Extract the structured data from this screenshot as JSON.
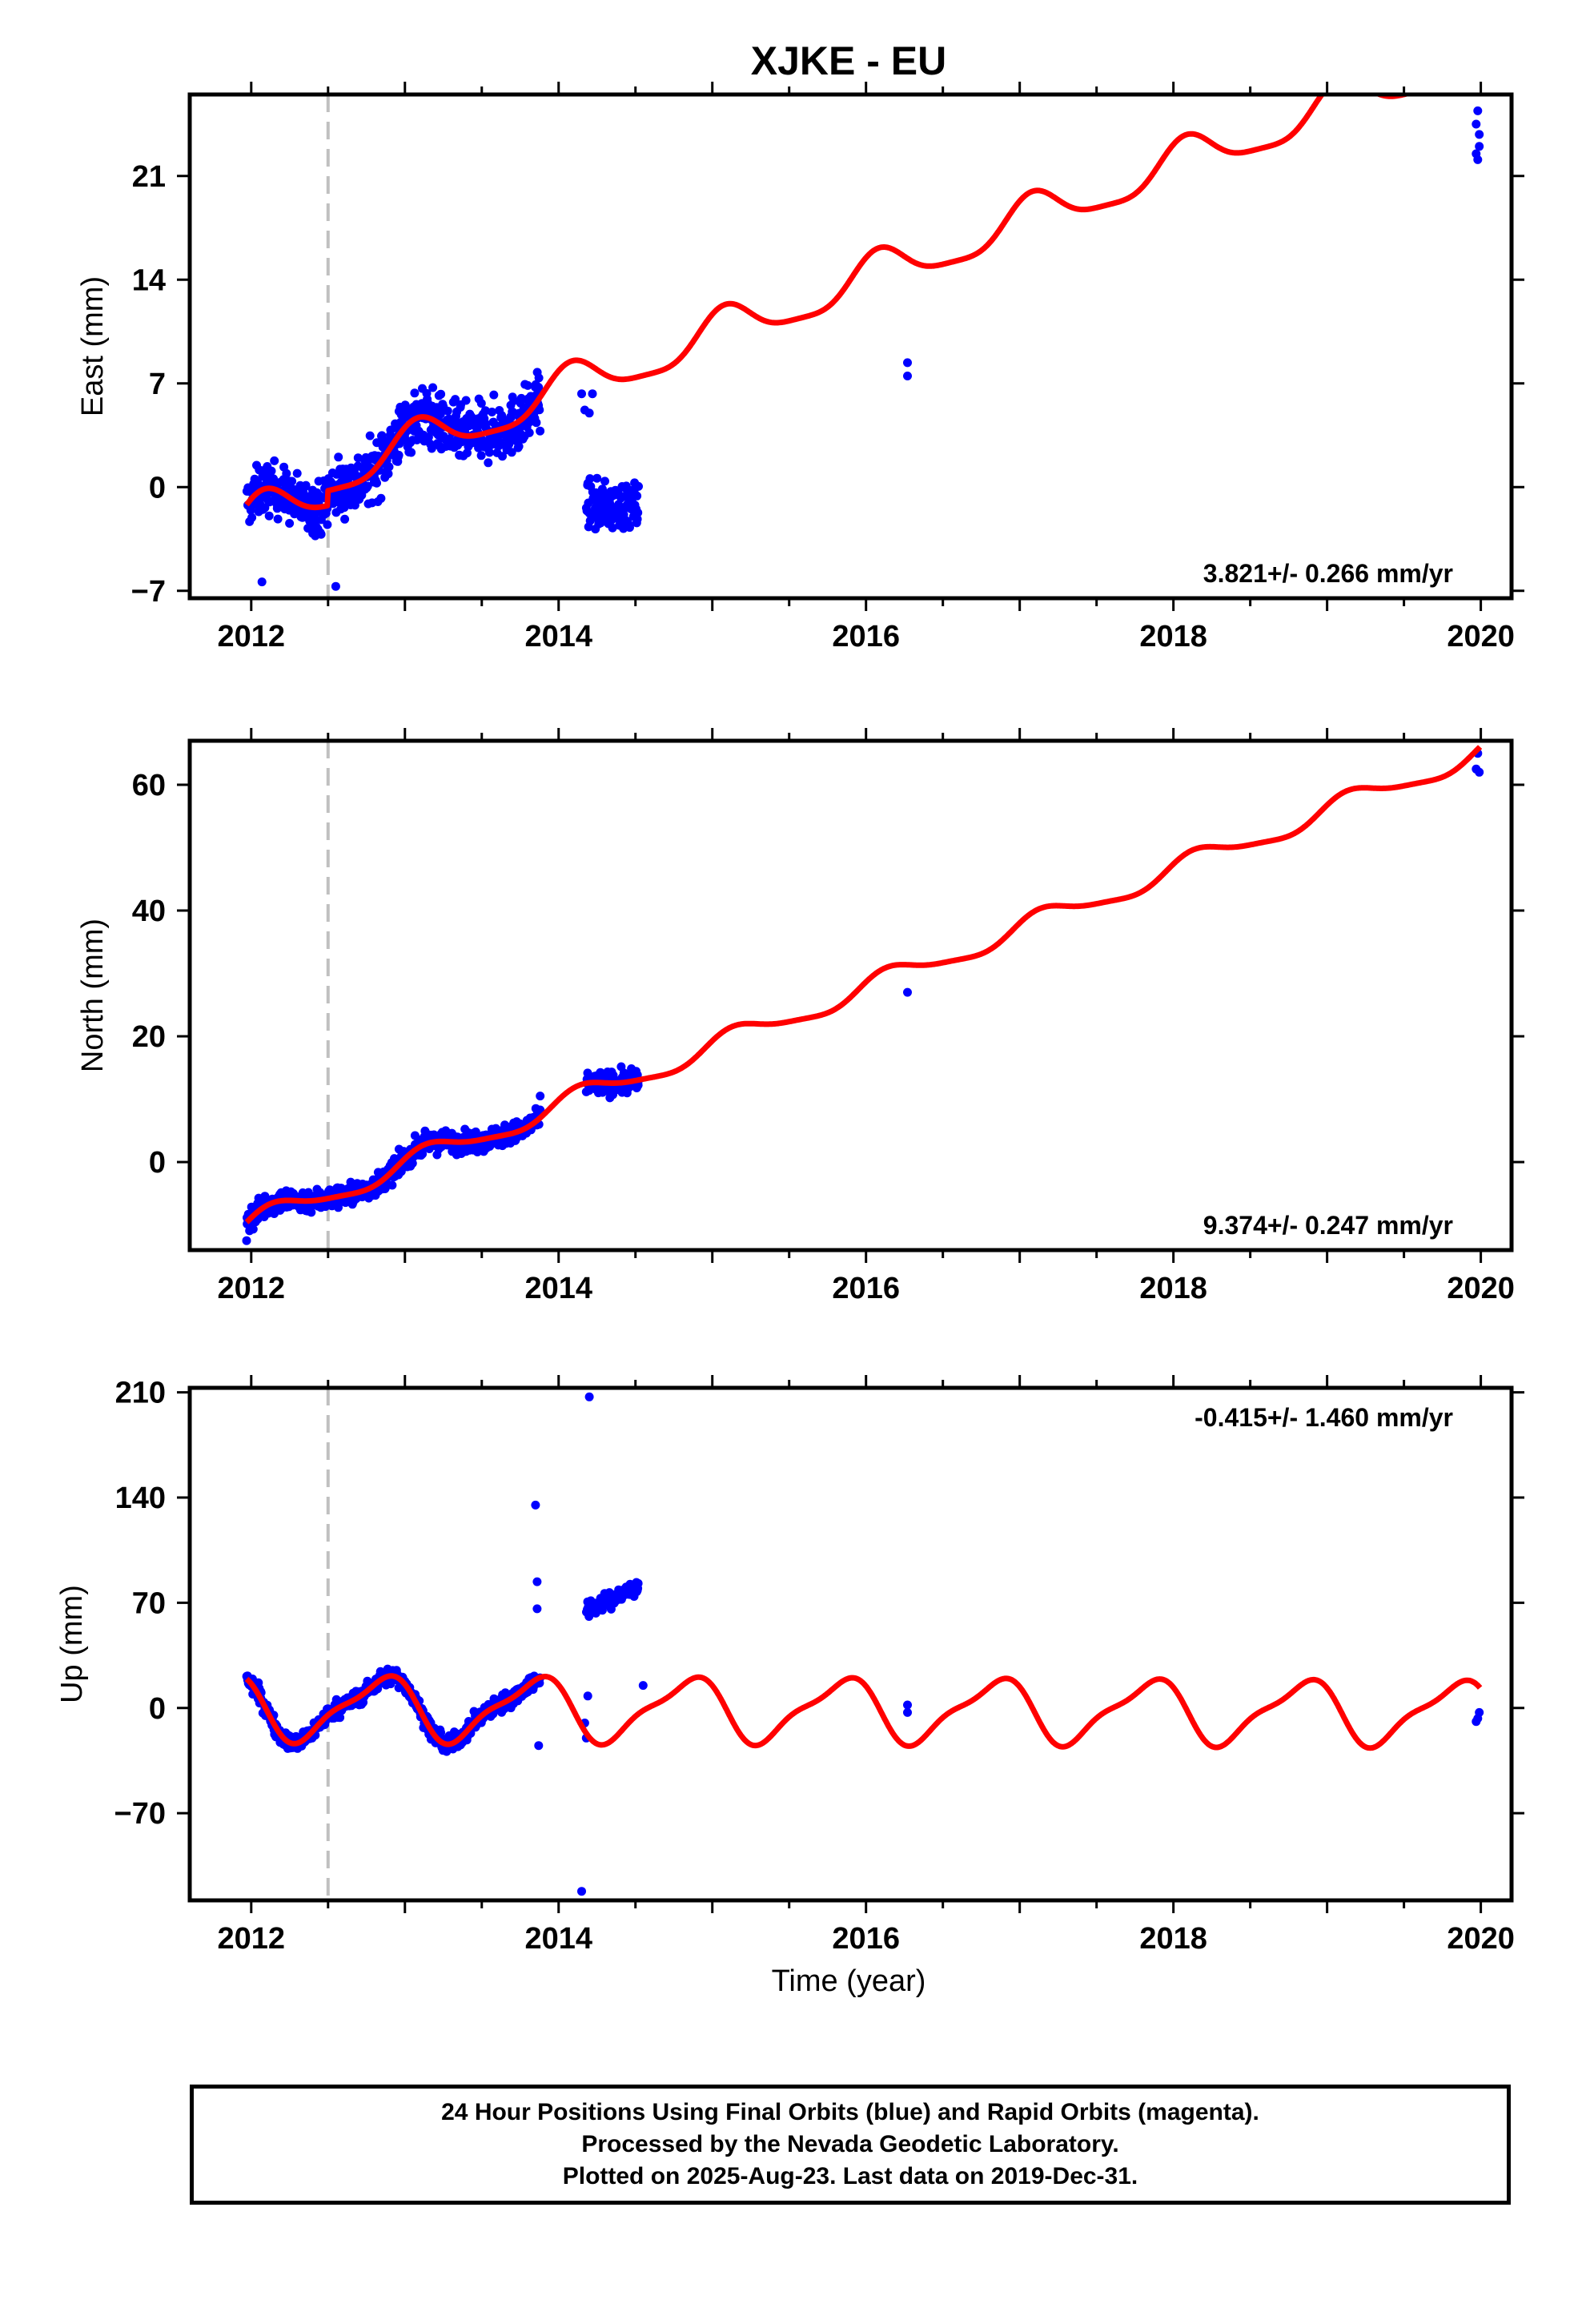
{
  "title": "XJKE - EU",
  "xlabel": "Time (year)",
  "colors": {
    "final_orbits": "#0000ff",
    "model": "#ff0000",
    "offset_marker": "#c0c0c0"
  },
  "footer": {
    "line1": "24 Hour Positions Using Final Orbits (blue) and Rapid Orbits (magenta).",
    "line2": "Processed by the Nevada Geodetic Laboratory.",
    "line3": "Plotted on 2025-Aug-23. Last data on 2019-Dec-31."
  },
  "chart_data": [
    {
      "type": "scatter",
      "panel": "east",
      "ylabel": "East (mm)",
      "rate_label": "3.821+/- 0.266 mm/yr",
      "xlim": [
        2011.6,
        2020.2
      ],
      "ylim": [
        -7.5,
        26.5
      ],
      "xticks": [
        2012,
        2014,
        2016,
        2018,
        2020
      ],
      "yticks": [
        -7,
        0,
        7,
        14,
        21
      ],
      "offset_epoch": 2012.5,
      "model": {
        "y0": -2.2,
        "rate": 3.821,
        "annual_amp": 1.4,
        "annual_phase": 1.0,
        "semi_amp": 0.35,
        "step": 1.0,
        "local_amp": 1.6
      },
      "data_segments": [
        {
          "x": [
            2011.97,
            2012.5
          ],
          "mean": -3.3,
          "scatter": 1.2
        },
        {
          "x": [
            2012.5,
            2013.88
          ],
          "mean": 0.6,
          "scatter": 1.4
        },
        {
          "x": [
            2014.18,
            2014.52
          ],
          "mean": -1.3,
          "scatter": 1.1
        }
      ],
      "points": [
        [
          2012.07,
          -6.4
        ],
        [
          2012.55,
          -6.7
        ],
        [
          2013.87,
          6.6
        ],
        [
          2013.86,
          5.8
        ],
        [
          2014.15,
          6.3
        ],
        [
          2014.22,
          6.3
        ],
        [
          2014.17,
          5.2
        ],
        [
          2014.2,
          5.0
        ],
        [
          2016.27,
          8.4
        ],
        [
          2016.27,
          7.5
        ],
        [
          2019.98,
          25.4
        ],
        [
          2019.97,
          24.5
        ],
        [
          2019.99,
          23.8
        ],
        [
          2019.97,
          22.5
        ],
        [
          2019.98,
          22.1
        ],
        [
          2019.99,
          23.0
        ]
      ]
    },
    {
      "type": "scatter",
      "panel": "north",
      "ylabel": "North (mm)",
      "rate_label": "9.374+/- 0.247 mm/yr",
      "xlim": [
        2011.6,
        2020.2
      ],
      "ylim": [
        -14,
        67
      ],
      "xticks": [
        2012,
        2014,
        2016,
        2018,
        2020
      ],
      "yticks": [
        0,
        20,
        40,
        60
      ],
      "offset_epoch": 2012.5,
      "model": {
        "y0": -9.8,
        "rate": 9.374,
        "annual_amp": 1.7,
        "annual_phase": 0.5,
        "semi_amp": 0.4,
        "step": 0.0,
        "local_amp": 1.0
      },
      "data_segments": [
        {
          "x": [
            2011.97,
            2012.5
          ],
          "mean": -9.5,
          "scatter": 1.3
        },
        {
          "x": [
            2012.5,
            2013.88
          ],
          "mean": 0.0,
          "scatter": 1.2
        },
        {
          "x": [
            2014.18,
            2014.52
          ],
          "mean": 10.0,
          "scatter": 1.3
        }
      ],
      "points": [
        [
          2011.97,
          -12.5
        ],
        [
          2013.88,
          10.5
        ],
        [
          2016.27,
          27.0
        ],
        [
          2019.98,
          65.0
        ],
        [
          2019.97,
          62.5
        ],
        [
          2019.99,
          62.0
        ]
      ]
    },
    {
      "type": "scatter",
      "panel": "up",
      "ylabel": "Up (mm)",
      "rate_label": "-0.415+/- 1.460 mm/yr",
      "xlim": [
        2011.6,
        2020.2
      ],
      "ylim": [
        -128,
        213
      ],
      "xticks": [
        2012,
        2014,
        2016,
        2018,
        2020
      ],
      "yticks": [
        -70,
        0,
        70,
        140,
        210
      ],
      "offset_epoch": 2012.5,
      "model": {
        "y0": 0.0,
        "rate": -0.415,
        "annual_amp": 20.0,
        "annual_phase": 2.6,
        "semi_amp": 6.0,
        "step": 0.0,
        "local_amp": 0.0
      },
      "data_segments": [
        {
          "x": [
            2011.97,
            2012.5
          ],
          "mean": 0.0,
          "scatter": 4.0
        },
        {
          "x": [
            2012.5,
            2013.88
          ],
          "mean": 0.0,
          "scatter": 4.0
        },
        {
          "x": [
            2014.18,
            2014.52
          ],
          "mean": 64.0,
          "scatter": 4.0
        }
      ],
      "points": [
        [
          2013.85,
          135
        ],
        [
          2013.86,
          84
        ],
        [
          2013.86,
          66
        ],
        [
          2013.87,
          -25
        ],
        [
          2014.2,
          207
        ],
        [
          2014.15,
          -122
        ],
        [
          2014.18,
          -20
        ],
        [
          2014.17,
          -10
        ],
        [
          2014.19,
          8
        ],
        [
          2014.55,
          15
        ],
        [
          2016.27,
          2
        ],
        [
          2016.27,
          -3
        ],
        [
          2019.98,
          -7
        ],
        [
          2019.99,
          -3
        ],
        [
          2019.97,
          -9
        ]
      ]
    }
  ]
}
